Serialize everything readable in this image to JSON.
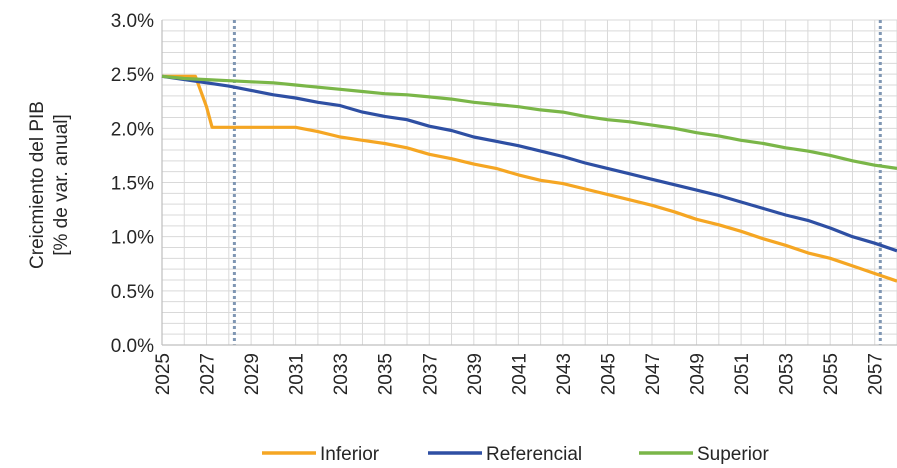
{
  "chart_data": {
    "type": "line",
    "ylabel_lines": [
      "Creicmiento del PIB",
      "[% de var. anual]"
    ],
    "xlabel": "",
    "ylim": [
      0,
      3
    ],
    "y_ticks": [
      "0.0%",
      "0.5%",
      "1.0%",
      "1.5%",
      "2.0%",
      "2.5%",
      "3.0%"
    ],
    "x_ticks": [
      "2025",
      "2027",
      "2029",
      "2031",
      "2033",
      "2035",
      "2037",
      "2039",
      "2041",
      "2043",
      "2045",
      "2047",
      "2049",
      "2051",
      "2053",
      "2055",
      "2057"
    ],
    "xlim": [
      2025,
      2058
    ],
    "grid": true,
    "vertical_markers": [
      2028.25,
      2057.25
    ],
    "legend_position": "bottom",
    "series": [
      {
        "name": "Inferior",
        "color": "#F5A623",
        "x": [
          2025,
          2026,
          2026.5,
          2027.0,
          2027.25,
          2028,
          2029,
          2030,
          2031,
          2032,
          2033,
          2034,
          2035,
          2036,
          2037,
          2038,
          2039,
          2040,
          2041,
          2042,
          2043,
          2044,
          2045,
          2046,
          2047,
          2048,
          2049,
          2050,
          2051,
          2052,
          2053,
          2054,
          2055,
          2056,
          2057,
          2058
        ],
        "values": [
          2.48,
          2.48,
          2.48,
          2.2,
          2.01,
          2.01,
          2.01,
          2.01,
          2.01,
          1.97,
          1.92,
          1.89,
          1.86,
          1.82,
          1.76,
          1.72,
          1.67,
          1.63,
          1.57,
          1.52,
          1.49,
          1.44,
          1.39,
          1.34,
          1.29,
          1.23,
          1.16,
          1.11,
          1.05,
          0.98,
          0.92,
          0.85,
          0.8,
          0.73,
          0.66,
          0.59
        ]
      },
      {
        "name": "Referencial",
        "color": "#2E4FA3",
        "x": [
          2025,
          2026,
          2027,
          2028,
          2029,
          2030,
          2031,
          2032,
          2033,
          2034,
          2035,
          2036,
          2037,
          2038,
          2039,
          2040,
          2041,
          2042,
          2043,
          2044,
          2045,
          2046,
          2047,
          2048,
          2049,
          2050,
          2051,
          2052,
          2053,
          2054,
          2055,
          2056,
          2057,
          2058
        ],
        "values": [
          2.48,
          2.45,
          2.42,
          2.39,
          2.35,
          2.31,
          2.28,
          2.24,
          2.21,
          2.15,
          2.11,
          2.08,
          2.02,
          1.98,
          1.92,
          1.88,
          1.84,
          1.79,
          1.74,
          1.68,
          1.63,
          1.58,
          1.53,
          1.48,
          1.43,
          1.38,
          1.32,
          1.26,
          1.2,
          1.15,
          1.08,
          1.0,
          0.94,
          0.87
        ]
      },
      {
        "name": "Superior",
        "color": "#7AB648",
        "x": [
          2025,
          2026,
          2027,
          2028,
          2029,
          2030,
          2031,
          2032,
          2033,
          2034,
          2035,
          2036,
          2037,
          2038,
          2039,
          2040,
          2041,
          2042,
          2043,
          2044,
          2045,
          2046,
          2047,
          2048,
          2049,
          2050,
          2051,
          2052,
          2053,
          2054,
          2055,
          2056,
          2057,
          2058
        ],
        "values": [
          2.48,
          2.46,
          2.45,
          2.44,
          2.43,
          2.42,
          2.4,
          2.38,
          2.36,
          2.34,
          2.32,
          2.31,
          2.29,
          2.27,
          2.24,
          2.22,
          2.2,
          2.17,
          2.15,
          2.11,
          2.08,
          2.06,
          2.03,
          2.0,
          1.96,
          1.93,
          1.89,
          1.86,
          1.82,
          1.79,
          1.75,
          1.7,
          1.66,
          1.63
        ]
      }
    ],
    "colors": {
      "grid": "#D9D9D9",
      "axis": "#BFBFBF",
      "marker": "#7F96B3"
    }
  }
}
